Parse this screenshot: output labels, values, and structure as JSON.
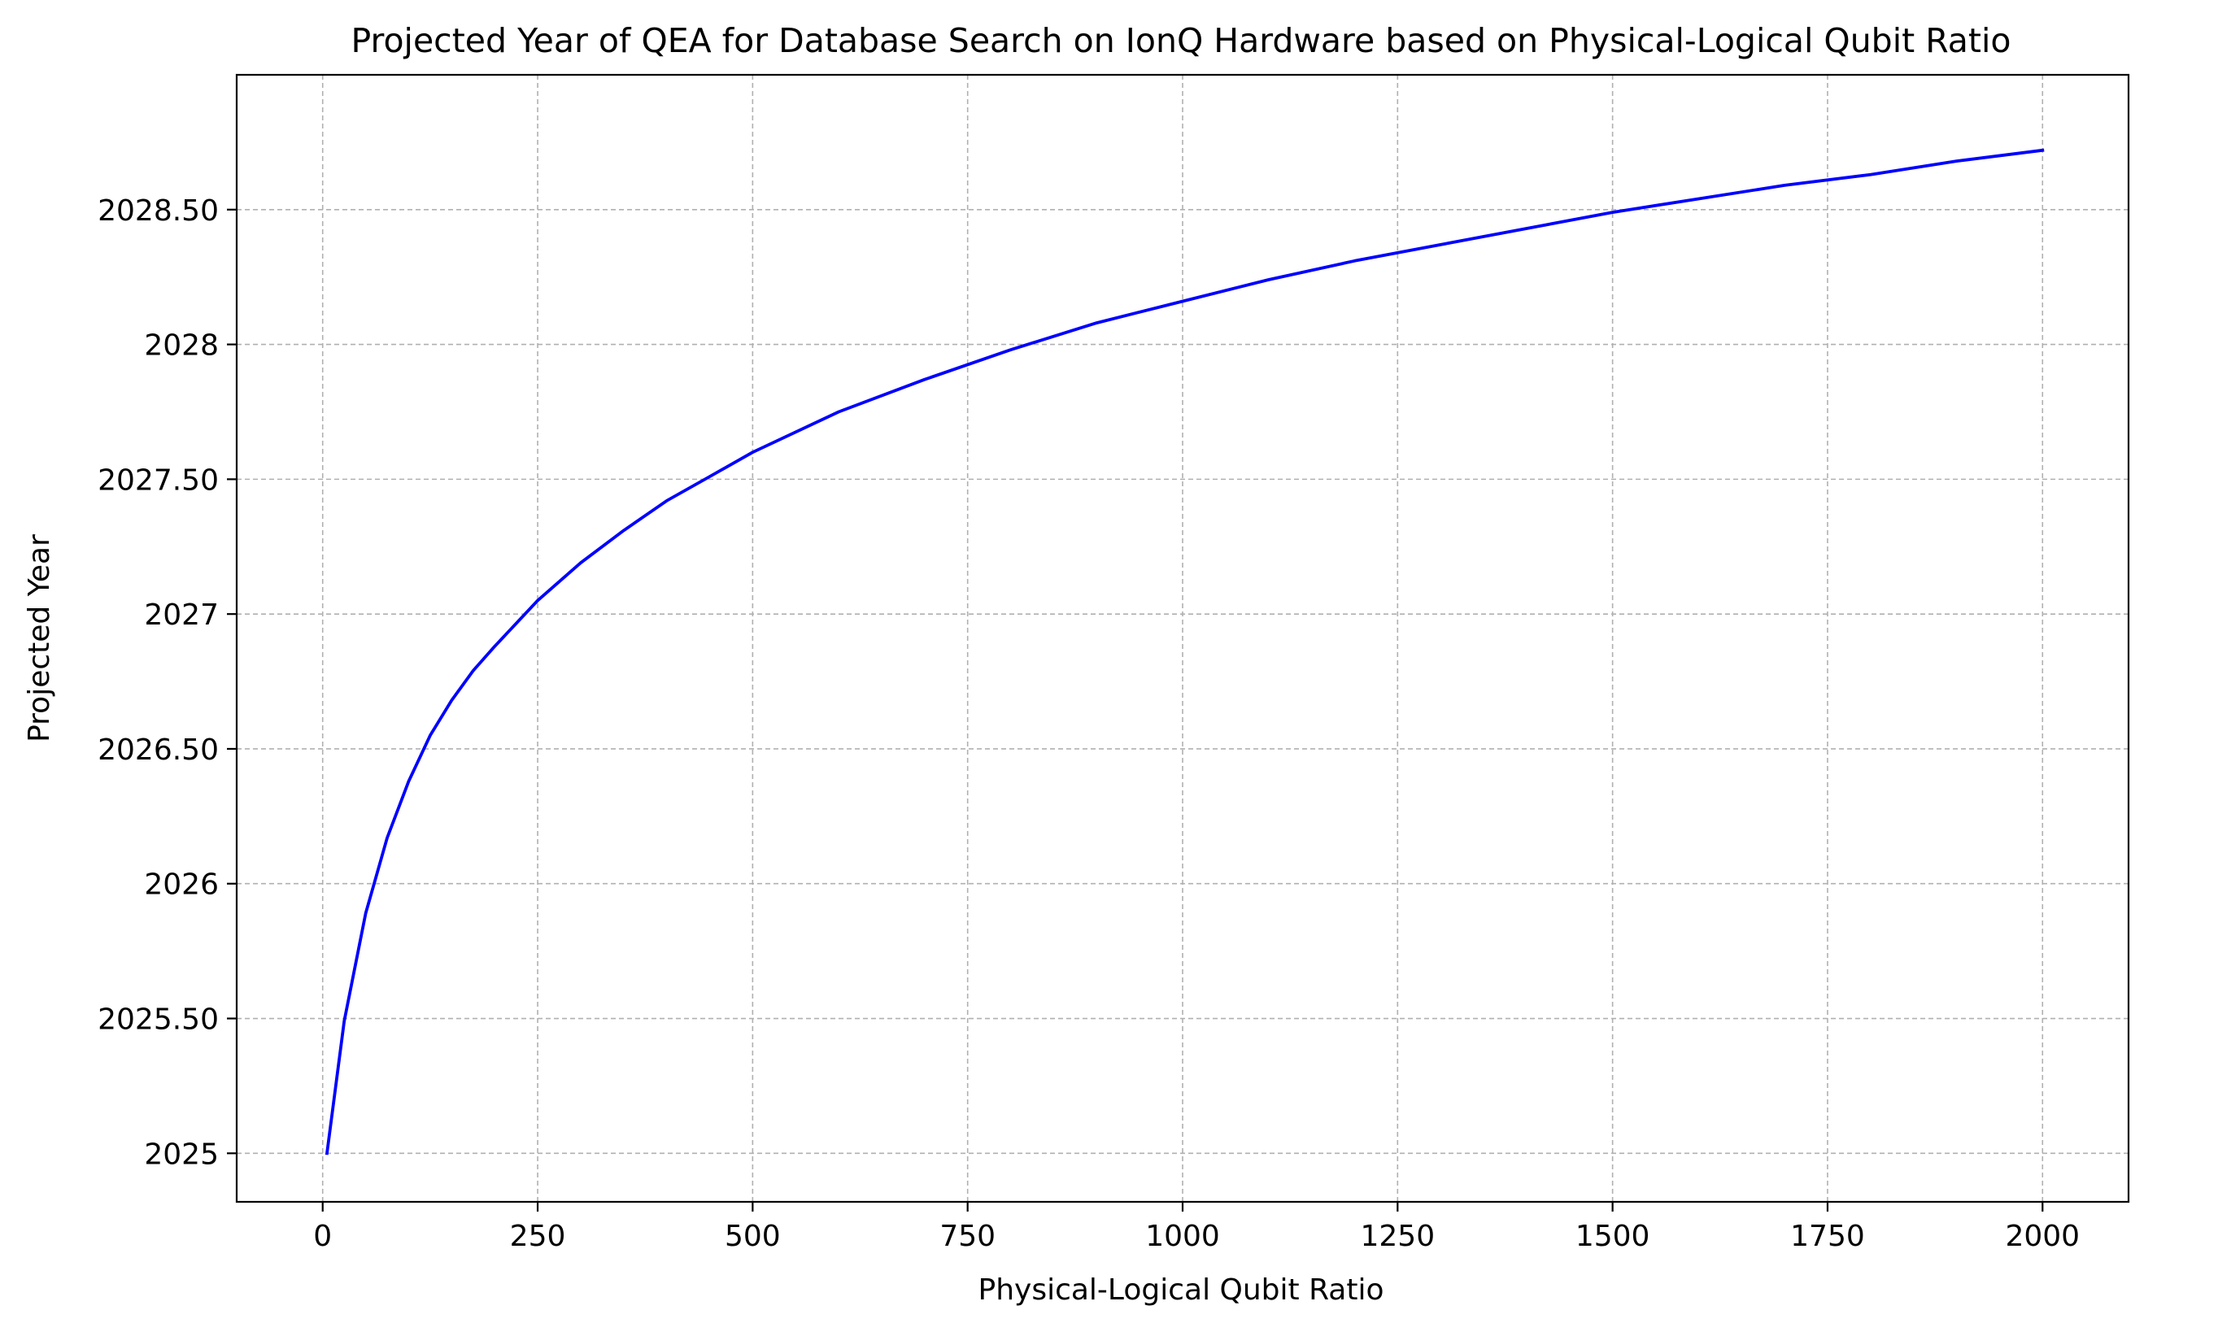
{
  "chart_data": {
    "type": "line",
    "title": "Projected Year of QEA for Database Search on IonQ Hardware based on Physical-Logical Qubit Ratio",
    "xlabel": "Physical-Logical Qubit Ratio",
    "ylabel": "Projected Year",
    "xlim": [
      -100,
      2100
    ],
    "ylim": [
      2024.82,
      2029.0
    ],
    "x_ticks": [
      0,
      250,
      500,
      750,
      1000,
      1250,
      1500,
      1750,
      2000
    ],
    "x_tick_labels": [
      "0",
      "250",
      "500",
      "750",
      "1000",
      "1250",
      "1500",
      "1750",
      "2000"
    ],
    "y_ticks": [
      2025,
      2025.5,
      2026,
      2026.5,
      2027,
      2027.5,
      2028,
      2028.5
    ],
    "y_tick_labels": [
      "2025",
      "2025.50",
      "2026",
      "2026.50",
      "2027",
      "2027.50",
      "2028",
      "2028.50"
    ],
    "grid": true,
    "series": [
      {
        "color": "#0000ff",
        "x": [
          5,
          25,
          50,
          75,
          100,
          125,
          150,
          175,
          200,
          250,
          300,
          350,
          400,
          450,
          500,
          600,
          700,
          800,
          900,
          1000,
          1100,
          1200,
          1300,
          1400,
          1500,
          1600,
          1700,
          1800,
          1900,
          2000
        ],
        "y": [
          2025.0,
          2025.49,
          2025.89,
          2026.17,
          2026.38,
          2026.55,
          2026.68,
          2026.79,
          2026.88,
          2027.05,
          2027.19,
          2027.31,
          2027.42,
          2027.51,
          2027.6,
          2027.75,
          2027.87,
          2027.98,
          2028.08,
          2028.16,
          2028.24,
          2028.31,
          2028.37,
          2028.43,
          2028.49,
          2028.54,
          2028.59,
          2028.63,
          2028.68,
          2028.72
        ]
      }
    ]
  }
}
